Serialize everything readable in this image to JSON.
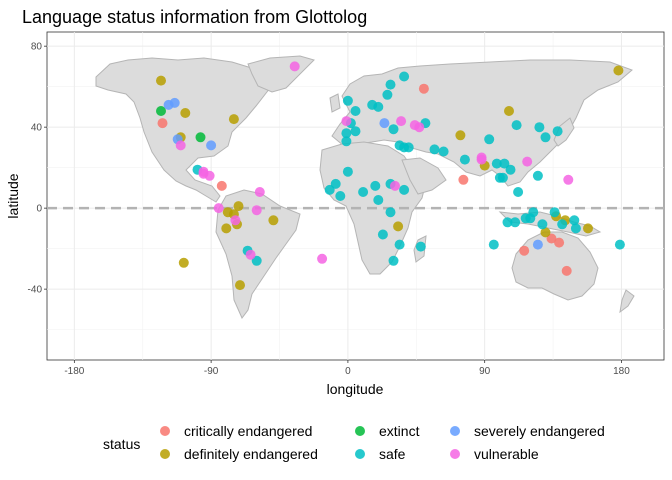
{
  "chart_data": {
    "type": "scatter",
    "title": "Language status information from Glottolog",
    "xlabel": "longitude",
    "ylabel": "latitude",
    "xlim": [
      -198,
      208
    ],
    "ylim": [
      -75,
      87
    ],
    "xticks": [
      -180,
      -90,
      0,
      90,
      180
    ],
    "yticks": [
      -40,
      0,
      40,
      80
    ],
    "grid": true,
    "reference_line": {
      "orientation": "horizontal",
      "y": 0,
      "style": "dashed"
    },
    "legend": {
      "title": "status",
      "position": "bottom",
      "entries": [
        {
          "name": "critically endangered",
          "color": "#F8766D"
        },
        {
          "name": "definitely endangered",
          "color": "#B79F00"
        },
        {
          "name": "extinct",
          "color": "#00BA38"
        },
        {
          "name": "safe",
          "color": "#00BFC4"
        },
        {
          "name": "severely endangered",
          "color": "#619CFF"
        },
        {
          "name": "vulnerable",
          "color": "#F564E3"
        }
      ]
    },
    "series": [
      {
        "name": "critically endangered",
        "color": "#F8766D",
        "points": [
          [
            -122,
            42
          ],
          [
            -83,
            11
          ],
          [
            50,
            59
          ],
          [
            76,
            14
          ],
          [
            116,
            -21
          ],
          [
            134,
            -15
          ],
          [
            139,
            -17
          ],
          [
            144,
            -31
          ]
        ]
      },
      {
        "name": "definitely endangered",
        "color": "#B79F00",
        "points": [
          [
            -123,
            63
          ],
          [
            -107,
            47
          ],
          [
            -110,
            35
          ],
          [
            -75,
            44
          ],
          [
            -79,
            -2
          ],
          [
            -73,
            -8
          ],
          [
            -71,
            -38
          ],
          [
            -49,
            -6
          ],
          [
            -72,
            1
          ],
          [
            -75,
            -3
          ],
          [
            -108,
            -27
          ],
          [
            90,
            21
          ],
          [
            106,
            48
          ],
          [
            178,
            68
          ],
          [
            74,
            36
          ],
          [
            33,
            -9
          ],
          [
            -80,
            -10
          ],
          [
            130,
            -12
          ],
          [
            137,
            -4
          ],
          [
            158,
            -10
          ],
          [
            143,
            -6
          ]
        ]
      },
      {
        "name": "extinct",
        "color": "#00BA38",
        "points": [
          [
            -123,
            48
          ],
          [
            -97,
            35
          ]
        ]
      },
      {
        "name": "safe",
        "color": "#00BFC4",
        "points": [
          [
            -99,
            19
          ],
          [
            -66,
            -21
          ],
          [
            -60,
            -26
          ],
          [
            0,
            53
          ],
          [
            5,
            48
          ],
          [
            20,
            50
          ],
          [
            26,
            56
          ],
          [
            37,
            65
          ],
          [
            28,
            61
          ],
          [
            34,
            31
          ],
          [
            37,
            30
          ],
          [
            -1,
            33
          ],
          [
            -8,
            12
          ],
          [
            0,
            18
          ],
          [
            18,
            11
          ],
          [
            10,
            8
          ],
          [
            28,
            12
          ],
          [
            37,
            9
          ],
          [
            28,
            -2
          ],
          [
            23,
            -13
          ],
          [
            34,
            -18
          ],
          [
            30,
            -26
          ],
          [
            48,
            -19
          ],
          [
            57,
            29
          ],
          [
            77,
            24
          ],
          [
            93,
            34
          ],
          [
            98,
            22
          ],
          [
            103,
            22
          ],
          [
            107,
            19
          ],
          [
            100,
            15
          ],
          [
            110,
            -7
          ],
          [
            117,
            -5
          ],
          [
            122,
            -2
          ],
          [
            125,
            16
          ],
          [
            130,
            35
          ],
          [
            138,
            38
          ],
          [
            126,
            40
          ],
          [
            120,
            -5
          ],
          [
            128,
            -8
          ],
          [
            149,
            -6
          ],
          [
            136,
            -2
          ],
          [
            141,
            -8
          ],
          [
            150,
            -10
          ],
          [
            179,
            -18
          ],
          [
            102,
            15
          ],
          [
            63,
            28
          ],
          [
            -5,
            6
          ],
          [
            -12,
            9
          ],
          [
            5,
            38
          ],
          [
            30,
            39
          ],
          [
            96,
            -18
          ],
          [
            111,
            41
          ],
          [
            16,
            51
          ],
          [
            40,
            30
          ],
          [
            -1,
            37
          ],
          [
            20,
            4
          ],
          [
            105,
            -7
          ],
          [
            112,
            8
          ],
          [
            2,
            42
          ],
          [
            51,
            42
          ]
        ]
      },
      {
        "name": "severely endangered",
        "color": "#619CFF",
        "points": [
          [
            -118,
            51
          ],
          [
            -114,
            52
          ],
          [
            -112,
            34
          ],
          [
            -90,
            31
          ],
          [
            24,
            42
          ],
          [
            125,
            -18
          ]
        ]
      },
      {
        "name": "vulnerable",
        "color": "#F564E3",
        "points": [
          [
            -110,
            31
          ],
          [
            -95,
            17
          ],
          [
            -91,
            16
          ],
          [
            -85,
            0
          ],
          [
            -74,
            -6
          ],
          [
            -60,
            -1
          ],
          [
            -64,
            -23
          ],
          [
            -58,
            8
          ],
          [
            -35,
            70
          ],
          [
            -1,
            43
          ],
          [
            31,
            11
          ],
          [
            -17,
            -25
          ],
          [
            35,
            43
          ],
          [
            47,
            40
          ],
          [
            44,
            41
          ],
          [
            88,
            25
          ],
          [
            118,
            23
          ],
          [
            145,
            14
          ],
          [
            88,
            24
          ],
          [
            -95,
            18
          ]
        ]
      }
    ]
  }
}
